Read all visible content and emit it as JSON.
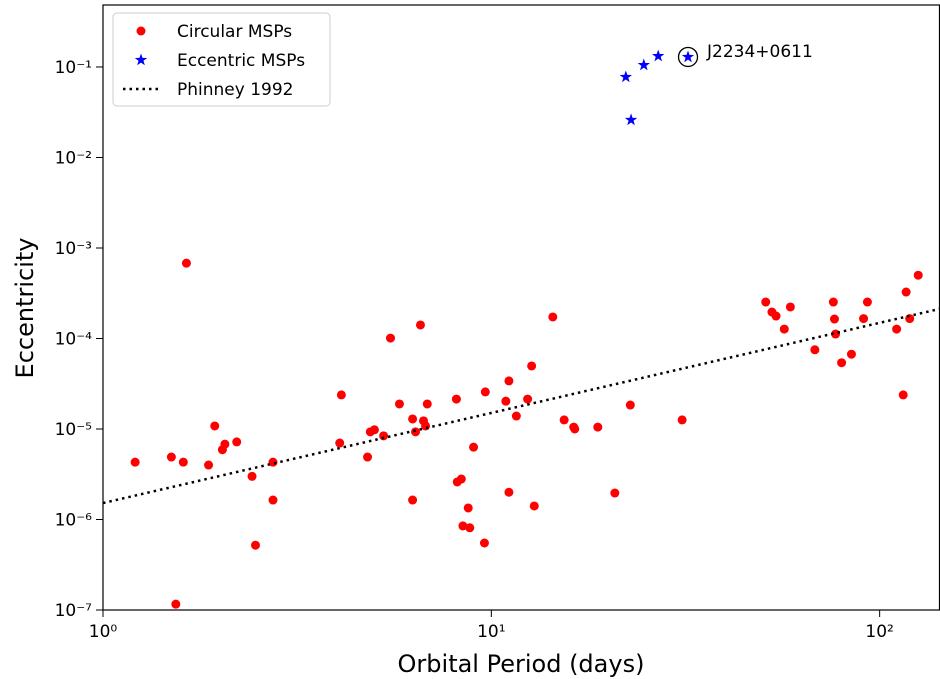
{
  "chart_data": {
    "type": "scatter",
    "xlabel": "Orbital Period (days)",
    "ylabel": "Eccentricity",
    "xscale": "log",
    "yscale": "log",
    "xlim": [
      1,
      142.6
    ],
    "ylim": [
      1e-07,
      0.484
    ],
    "xticks": [
      {
        "value": 1,
        "label": "10⁰"
      },
      {
        "value": 10,
        "label": "10¹"
      },
      {
        "value": 100,
        "label": "10²"
      }
    ],
    "yticks": [
      {
        "value": 1e-07,
        "label": "10⁻⁷"
      },
      {
        "value": 1e-06,
        "label": "10⁻⁶"
      },
      {
        "value": 1e-05,
        "label": "10⁻⁵"
      },
      {
        "value": 0.0001,
        "label": "10⁻⁴"
      },
      {
        "value": 0.001,
        "label": "10⁻³"
      },
      {
        "value": 0.01,
        "label": "10⁻²"
      },
      {
        "value": 0.1,
        "label": "10⁻¹"
      }
    ],
    "legend": "upper left",
    "annotation": "J2234+0611",
    "series": [
      {
        "name": "Circular MSPs",
        "color": "#ff0000",
        "marker": "circle",
        "x": [
          1.21,
          1.5,
          1.61,
          1.64,
          1.54,
          1.87,
          1.94,
          2.03,
          2.06,
          2.21,
          2.42,
          2.47,
          2.74,
          2.74,
          4.07,
          4.11,
          4.8,
          4.88,
          5.0,
          5.28,
          5.5,
          5.8,
          6.27,
          6.27,
          6.38,
          6.57,
          6.69,
          6.77,
          6.84,
          8.13,
          8.17,
          8.37,
          8.45,
          8.72,
          8.8,
          9.0,
          9.6,
          9.65,
          10.9,
          11.1,
          11.1,
          11.6,
          12.4,
          12.7,
          12.9,
          14.4,
          15.4,
          16.3,
          16.4,
          18.8,
          20.8,
          22.8,
          31.0,
          50.9,
          52.8,
          54.1,
          56.8,
          58.9,
          68.1,
          76.0,
          76.5,
          77.0,
          79.8,
          84.6,
          90.9,
          93.0,
          110.6,
          115,
          117,
          119.5,
          125.7
        ],
        "values": [
          4.3e-06,
          4.9e-06,
          4.3e-06,
          0.00068,
          1.16e-07,
          4e-06,
          1.08e-05,
          5.9e-06,
          6.8e-06,
          7.2e-06,
          3e-06,
          5.2e-07,
          4.3e-06,
          1.64e-06,
          7e-06,
          2.38e-05,
          4.9e-06,
          9.3e-06,
          9.8e-06,
          8.4e-06,
          0.000101,
          1.89e-05,
          1.29e-05,
          1.64e-06,
          9.3e-06,
          0.000141,
          1.23e-05,
          1.08e-05,
          1.89e-05,
          2.14e-05,
          2.6e-06,
          2.8e-06,
          8.5e-07,
          1.34e-06,
          8.1e-07,
          6.3e-06,
          5.5e-07,
          2.57e-05,
          2.03e-05,
          3.4e-05,
          2e-06,
          1.39e-05,
          2.14e-05,
          4.97e-05,
          1.41e-06,
          0.000173,
          1.26e-05,
          1.05e-05,
          1e-05,
          1.05e-05,
          1.96e-06,
          1.84e-05,
          1.26e-05,
          0.000253,
          0.000196,
          0.000177,
          0.000127,
          0.000223,
          7.5e-05,
          0.000253,
          0.000164,
          0.000112,
          5.4e-05,
          6.7e-05,
          0.000166,
          0.000253,
          0.000127,
          2.38e-05,
          0.000326,
          0.000166,
          0.0005
        ]
      },
      {
        "name": "Eccentric MSPs",
        "color": "#0000ff",
        "marker": "star",
        "x": [
          22.2,
          22.9,
          24.7,
          26.9,
          32.1
        ],
        "values": [
          0.0776,
          0.026,
          0.105,
          0.132,
          0.129
        ]
      },
      {
        "name": "Phinney 1992",
        "color": "#000000",
        "marker": "line",
        "linestyle": "dotted",
        "x": [
          1,
          142.6
        ],
        "values": [
          1.52e-06,
          0.000212
        ]
      }
    ]
  }
}
